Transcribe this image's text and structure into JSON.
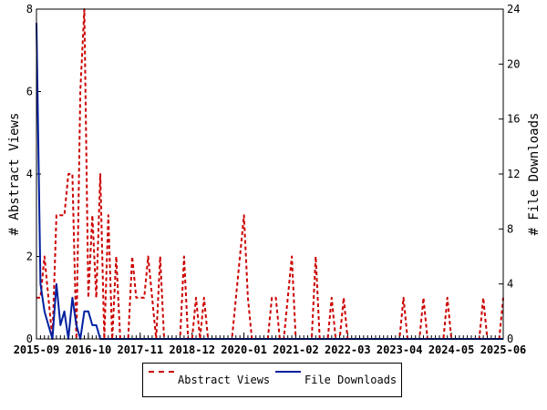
{
  "chart_data": {
    "type": "line",
    "title": "",
    "xlabel": "",
    "ylabel_left": "# Abstract Views",
    "ylabel_right": "# File Downloads",
    "ylim_left": [
      0,
      8
    ],
    "ylim_right": [
      0,
      24
    ],
    "yticks_left": [
      "0",
      "2",
      "4",
      "6",
      "8"
    ],
    "yticks_right": [
      "0",
      "4",
      "8",
      "12",
      "16",
      "20",
      "24"
    ],
    "xlim": [
      "2015-09",
      "2025-06"
    ],
    "xticks": [
      "2015-09",
      "2016-10",
      "2017-11",
      "2018-12",
      "2020-01",
      "2021-02",
      "2022-03",
      "2023-04",
      "2024-05",
      "2025-06"
    ],
    "legend": "bottom",
    "series": [
      {
        "name": "Abstract Views",
        "axis": "left",
        "color": "#cc0000",
        "style": "dashed",
        "points": [
          [
            "2015-09",
            1
          ],
          [
            "2015-10",
            1
          ],
          [
            "2015-11",
            2
          ],
          [
            "2015-12",
            1
          ],
          [
            "2016-01",
            0
          ],
          [
            "2016-02",
            3
          ],
          [
            "2016-03",
            3
          ],
          [
            "2016-04",
            3
          ],
          [
            "2016-05",
            4
          ],
          [
            "2016-06",
            4
          ],
          [
            "2016-07",
            0
          ],
          [
            "2016-08",
            6
          ],
          [
            "2016-09",
            8
          ],
          [
            "2016-10",
            1
          ],
          [
            "2016-11",
            3
          ],
          [
            "2016-12",
            1
          ],
          [
            "2017-01",
            4
          ],
          [
            "2017-02",
            0
          ],
          [
            "2017-03",
            3
          ],
          [
            "2017-04",
            0
          ],
          [
            "2017-05",
            2
          ],
          [
            "2017-06",
            0
          ],
          [
            "2017-07",
            0
          ],
          [
            "2017-08",
            0
          ],
          [
            "2017-09",
            2
          ],
          [
            "2017-10",
            1
          ],
          [
            "2017-11",
            1
          ],
          [
            "2017-12",
            1
          ],
          [
            "2018-01",
            2
          ],
          [
            "2018-02",
            1
          ],
          [
            "2018-03",
            0
          ],
          [
            "2018-04",
            2
          ],
          [
            "2018-05",
            0
          ],
          [
            "2018-06",
            0
          ],
          [
            "2018-07",
            0
          ],
          [
            "2018-08",
            0
          ],
          [
            "2018-09",
            0
          ],
          [
            "2018-10",
            2
          ],
          [
            "2018-11",
            0
          ],
          [
            "2018-12",
            0
          ],
          [
            "2019-01",
            1
          ],
          [
            "2019-02",
            0
          ],
          [
            "2019-03",
            1
          ],
          [
            "2019-04",
            0
          ],
          [
            "2019-05",
            0
          ],
          [
            "2019-06",
            0
          ],
          [
            "2019-07",
            0
          ],
          [
            "2019-08",
            0
          ],
          [
            "2019-09",
            0
          ],
          [
            "2019-10",
            0
          ],
          [
            "2019-11",
            1
          ],
          [
            "2019-12",
            2
          ],
          [
            "2020-01",
            3
          ],
          [
            "2020-02",
            1
          ],
          [
            "2020-03",
            0
          ],
          [
            "2020-04",
            0
          ],
          [
            "2020-05",
            0
          ],
          [
            "2020-06",
            0
          ],
          [
            "2020-07",
            0
          ],
          [
            "2020-08",
            1
          ],
          [
            "2020-09",
            1
          ],
          [
            "2020-10",
            0
          ],
          [
            "2020-11",
            0
          ],
          [
            "2020-12",
            1
          ],
          [
            "2021-01",
            2
          ],
          [
            "2021-02",
            0
          ],
          [
            "2021-03",
            0
          ],
          [
            "2021-04",
            0
          ],
          [
            "2021-05",
            0
          ],
          [
            "2021-06",
            0
          ],
          [
            "2021-07",
            2
          ],
          [
            "2021-08",
            0
          ],
          [
            "2021-09",
            0
          ],
          [
            "2021-10",
            0
          ],
          [
            "2021-11",
            1
          ],
          [
            "2021-12",
            0
          ],
          [
            "2022-01",
            0
          ],
          [
            "2022-02",
            1
          ],
          [
            "2022-03",
            0
          ],
          [
            "2022-04",
            0
          ],
          [
            "2022-05",
            0
          ],
          [
            "2022-06",
            0
          ],
          [
            "2022-07",
            0
          ],
          [
            "2022-08",
            0
          ],
          [
            "2022-09",
            0
          ],
          [
            "2022-10",
            0
          ],
          [
            "2022-11",
            0
          ],
          [
            "2022-12",
            0
          ],
          [
            "2023-01",
            0
          ],
          [
            "2023-02",
            0
          ],
          [
            "2023-03",
            0
          ],
          [
            "2023-04",
            0
          ],
          [
            "2023-05",
            1
          ],
          [
            "2023-06",
            0
          ],
          [
            "2023-07",
            0
          ],
          [
            "2023-08",
            0
          ],
          [
            "2023-09",
            0
          ],
          [
            "2023-10",
            1
          ],
          [
            "2023-11",
            0
          ],
          [
            "2023-12",
            0
          ],
          [
            "2024-01",
            0
          ],
          [
            "2024-02",
            0
          ],
          [
            "2024-03",
            0
          ],
          [
            "2024-04",
            1
          ],
          [
            "2024-05",
            0
          ],
          [
            "2024-06",
            0
          ],
          [
            "2024-07",
            0
          ],
          [
            "2024-08",
            0
          ],
          [
            "2024-09",
            0
          ],
          [
            "2024-10",
            0
          ],
          [
            "2024-11",
            0
          ],
          [
            "2024-12",
            0
          ],
          [
            "2025-01",
            1
          ],
          [
            "2025-02",
            0
          ],
          [
            "2025-03",
            0
          ],
          [
            "2025-04",
            0
          ],
          [
            "2025-05",
            0
          ],
          [
            "2025-06",
            1
          ]
        ]
      },
      {
        "name": "File Downloads",
        "axis": "right",
        "color": "#00209f",
        "style": "solid",
        "points": [
          [
            "2015-09",
            23
          ],
          [
            "2015-10",
            4
          ],
          [
            "2015-11",
            2
          ],
          [
            "2015-12",
            1
          ],
          [
            "2016-01",
            0
          ],
          [
            "2016-02",
            4
          ],
          [
            "2016-03",
            1
          ],
          [
            "2016-04",
            2
          ],
          [
            "2016-05",
            0
          ],
          [
            "2016-06",
            3
          ],
          [
            "2016-07",
            1
          ],
          [
            "2016-08",
            0
          ],
          [
            "2016-09",
            2
          ],
          [
            "2016-10",
            2
          ],
          [
            "2016-11",
            1
          ],
          [
            "2016-12",
            1
          ],
          [
            "2017-01",
            0
          ],
          [
            "2017-02",
            0
          ],
          [
            "2017-03",
            0
          ],
          [
            "2017-04",
            0
          ],
          [
            "2025-06",
            0
          ]
        ]
      }
    ]
  },
  "legend": {
    "views_label": "Abstract Views",
    "downloads_label": "File Downloads"
  }
}
